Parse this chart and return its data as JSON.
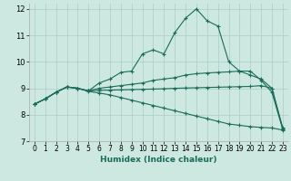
{
  "xlabel": "Humidex (Indice chaleur)",
  "bg_color": "#cce8e0",
  "grid_color": "#aaccc4",
  "line_color": "#1a6b5a",
  "xlim": [
    -0.5,
    23.5
  ],
  "ylim": [
    7,
    12.2
  ],
  "yticks": [
    7,
    8,
    9,
    10,
    11,
    12
  ],
  "xticks": [
    0,
    1,
    2,
    3,
    4,
    5,
    6,
    7,
    8,
    9,
    10,
    11,
    12,
    13,
    14,
    15,
    16,
    17,
    18,
    19,
    20,
    21,
    22,
    23
  ],
  "lines": [
    {
      "x": [
        0,
        1,
        2,
        3,
        4,
        5,
        6,
        7,
        8,
        9,
        10,
        11,
        12,
        13,
        14,
        15,
        16,
        17,
        18,
        19,
        20,
        21,
        22,
        23
      ],
      "y": [
        8.4,
        8.6,
        8.85,
        9.05,
        9.0,
        8.9,
        9.2,
        9.35,
        9.6,
        9.65,
        10.3,
        10.45,
        10.3,
        11.1,
        11.65,
        12.0,
        11.55,
        11.35,
        10.0,
        9.65,
        9.65,
        9.3,
        8.85,
        7.45
      ]
    },
    {
      "x": [
        0,
        1,
        2,
        3,
        4,
        5,
        6,
        7,
        8,
        9,
        10,
        11,
        12,
        13,
        14,
        15,
        16,
        17,
        18,
        19,
        20,
        21,
        22,
        23
      ],
      "y": [
        8.4,
        8.6,
        8.85,
        9.05,
        9.0,
        8.9,
        9.0,
        9.05,
        9.1,
        9.15,
        9.2,
        9.3,
        9.35,
        9.4,
        9.5,
        9.55,
        9.58,
        9.6,
        9.62,
        9.65,
        9.5,
        9.35,
        9.0,
        7.5
      ]
    },
    {
      "x": [
        0,
        1,
        2,
        3,
        4,
        5,
        6,
        7,
        8,
        9,
        10,
        11,
        12,
        13,
        14,
        15,
        16,
        17,
        18,
        19,
        20,
        21,
        22,
        23
      ],
      "y": [
        8.4,
        8.6,
        8.85,
        9.05,
        9.0,
        8.9,
        8.92,
        8.93,
        8.94,
        8.95,
        8.96,
        8.97,
        8.98,
        9.0,
        9.01,
        9.02,
        9.03,
        9.04,
        9.05,
        9.06,
        9.07,
        9.1,
        9.0,
        7.48
      ]
    },
    {
      "x": [
        0,
        1,
        2,
        3,
        4,
        5,
        6,
        7,
        8,
        9,
        10,
        11,
        12,
        13,
        14,
        15,
        16,
        17,
        18,
        19,
        20,
        21,
        22,
        23
      ],
      "y": [
        8.4,
        8.6,
        8.85,
        9.05,
        9.0,
        8.88,
        8.82,
        8.75,
        8.65,
        8.55,
        8.45,
        8.35,
        8.25,
        8.15,
        8.05,
        7.95,
        7.85,
        7.75,
        7.65,
        7.6,
        7.55,
        7.52,
        7.5,
        7.42
      ]
    }
  ]
}
